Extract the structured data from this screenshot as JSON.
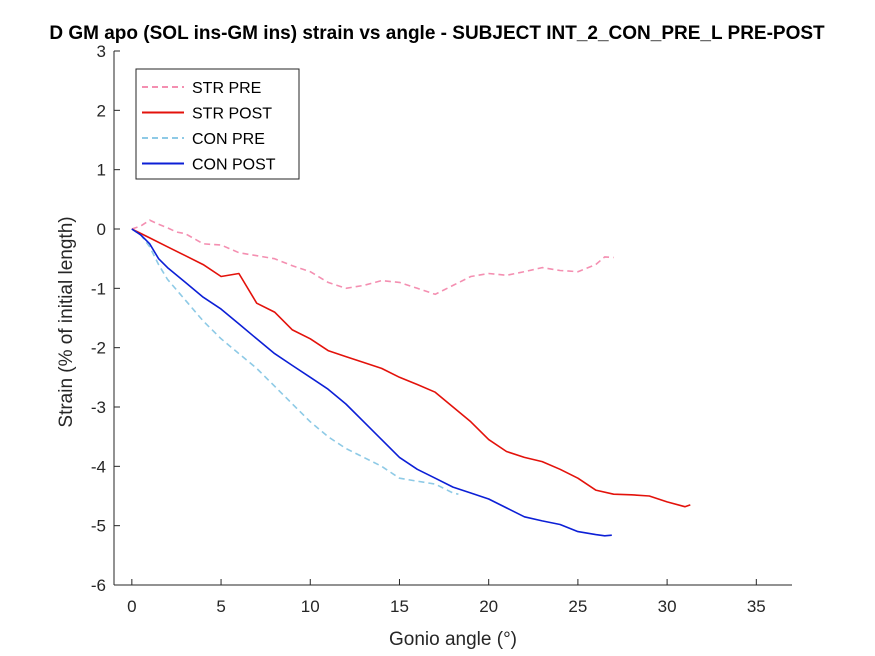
{
  "chart_data": {
    "type": "line",
    "title": "D GM apo (SOL ins-GM ins) strain vs angle - SUBJECT INT_2_CON_PRE_L PRE-POST",
    "xlabel": "Gonio angle (°)",
    "ylabel": "Strain (% of initial length)",
    "xlim": [
      -1,
      37
    ],
    "ylim": [
      -6,
      3
    ],
    "xticks": [
      0,
      5,
      10,
      15,
      20,
      25,
      30,
      35
    ],
    "yticks": [
      3,
      2,
      1,
      0,
      -1,
      -2,
      -3,
      -4,
      -5,
      -6
    ],
    "grid": false,
    "legend_position": "top-left",
    "series": [
      {
        "name": "STR PRE",
        "color": "#f48fb1",
        "dash": "dashed",
        "x": [
          0,
          0.5,
          1,
          1.5,
          2,
          2.5,
          3,
          4,
          5,
          6,
          7,
          8,
          9,
          10,
          11,
          12,
          13,
          14,
          15,
          16,
          17,
          18,
          19,
          20,
          21,
          22,
          23,
          24,
          25,
          26,
          26.5,
          27
        ],
        "y": [
          0,
          0.05,
          0.15,
          0.08,
          0.02,
          -0.05,
          -0.08,
          -0.25,
          -0.27,
          -0.4,
          -0.45,
          -0.5,
          -0.62,
          -0.72,
          -0.9,
          -1.0,
          -0.95,
          -0.87,
          -0.9,
          -1.0,
          -1.1,
          -0.95,
          -0.8,
          -0.75,
          -0.78,
          -0.72,
          -0.65,
          -0.7,
          -0.72,
          -0.6,
          -0.47,
          -0.48
        ]
      },
      {
        "name": "STR POST",
        "color": "#e3120b",
        "dash": "solid",
        "x": [
          0,
          1,
          2,
          3,
          4,
          5,
          6,
          7,
          8,
          9,
          10,
          11,
          12,
          13,
          14,
          15,
          16,
          17,
          18,
          19,
          20,
          21,
          22,
          23,
          24,
          25,
          26,
          27,
          28,
          29,
          30,
          31,
          31.3
        ],
        "y": [
          0,
          -0.15,
          -0.3,
          -0.45,
          -0.6,
          -0.8,
          -0.75,
          -1.25,
          -1.4,
          -1.7,
          -1.85,
          -2.05,
          -2.15,
          -2.25,
          -2.35,
          -2.5,
          -2.62,
          -2.75,
          -3.0,
          -3.25,
          -3.55,
          -3.75,
          -3.85,
          -3.92,
          -4.05,
          -4.2,
          -4.4,
          -4.47,
          -4.48,
          -4.5,
          -4.6,
          -4.68,
          -4.65
        ]
      },
      {
        "name": "CON PRE",
        "color": "#8ecae6",
        "dash": "dashed",
        "x": [
          0,
          0.5,
          1,
          1.5,
          2,
          3,
          4,
          5,
          6,
          7,
          8,
          9,
          10,
          11,
          12,
          13,
          14,
          15,
          16,
          17,
          18,
          18.3
        ],
        "y": [
          0,
          -0.1,
          -0.3,
          -0.6,
          -0.85,
          -1.2,
          -1.55,
          -1.85,
          -2.1,
          -2.35,
          -2.65,
          -2.95,
          -3.25,
          -3.5,
          -3.7,
          -3.85,
          -4.0,
          -4.2,
          -4.25,
          -4.3,
          -4.45,
          -4.47
        ]
      },
      {
        "name": "CON POST",
        "color": "#0c1fd6",
        "dash": "solid",
        "x": [
          0,
          0.5,
          1,
          1.5,
          2,
          3,
          4,
          5,
          6,
          7,
          8,
          9,
          10,
          11,
          12,
          13,
          14,
          15,
          16,
          17,
          18,
          19,
          20,
          21,
          22,
          23,
          24,
          25,
          26,
          26.5,
          26.9
        ],
        "y": [
          0,
          -0.1,
          -0.25,
          -0.5,
          -0.65,
          -0.9,
          -1.15,
          -1.35,
          -1.6,
          -1.85,
          -2.1,
          -2.3,
          -2.5,
          -2.7,
          -2.95,
          -3.25,
          -3.55,
          -3.85,
          -4.05,
          -4.2,
          -4.35,
          -4.45,
          -4.55,
          -4.7,
          -4.85,
          -4.92,
          -4.98,
          -5.1,
          -5.15,
          -5.17,
          -5.16
        ]
      }
    ]
  }
}
